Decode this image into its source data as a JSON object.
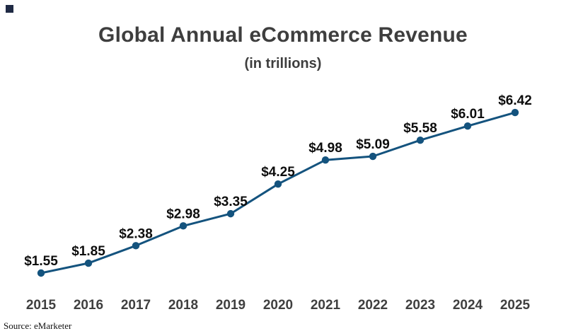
{
  "logo": {
    "color": "#1f2a44"
  },
  "header": {
    "title": "Global Annual eCommerce Revenue",
    "subtitle": "(in trillions)"
  },
  "footer": {
    "source": "Source: eMarketer"
  },
  "chart_data": {
    "type": "line",
    "title": "Global Annual eCommerce Revenue",
    "subtitle": "(in trillions)",
    "categories": [
      "2015",
      "2016",
      "2017",
      "2018",
      "2019",
      "2020",
      "2021",
      "2022",
      "2023",
      "2024",
      "2025"
    ],
    "values": [
      1.55,
      1.85,
      2.38,
      2.98,
      3.35,
      4.25,
      4.98,
      5.09,
      5.58,
      6.01,
      6.42
    ],
    "point_labels": [
      "$1.55",
      "$1.85",
      "$2.38",
      "$2.98",
      "$3.35",
      "$4.25",
      "$4.98",
      "$5.09",
      "$5.58",
      "$6.01",
      "$6.42"
    ],
    "unit": "USD trillions",
    "series_color": "#14537e",
    "point_label_color": "#0d0d0d",
    "axis_label_color": "#3f3f3f",
    "grid": false,
    "legend": false,
    "y_axis_visible": false,
    "x_axis_labels_only": true,
    "source": "Source: eMarketer"
  }
}
